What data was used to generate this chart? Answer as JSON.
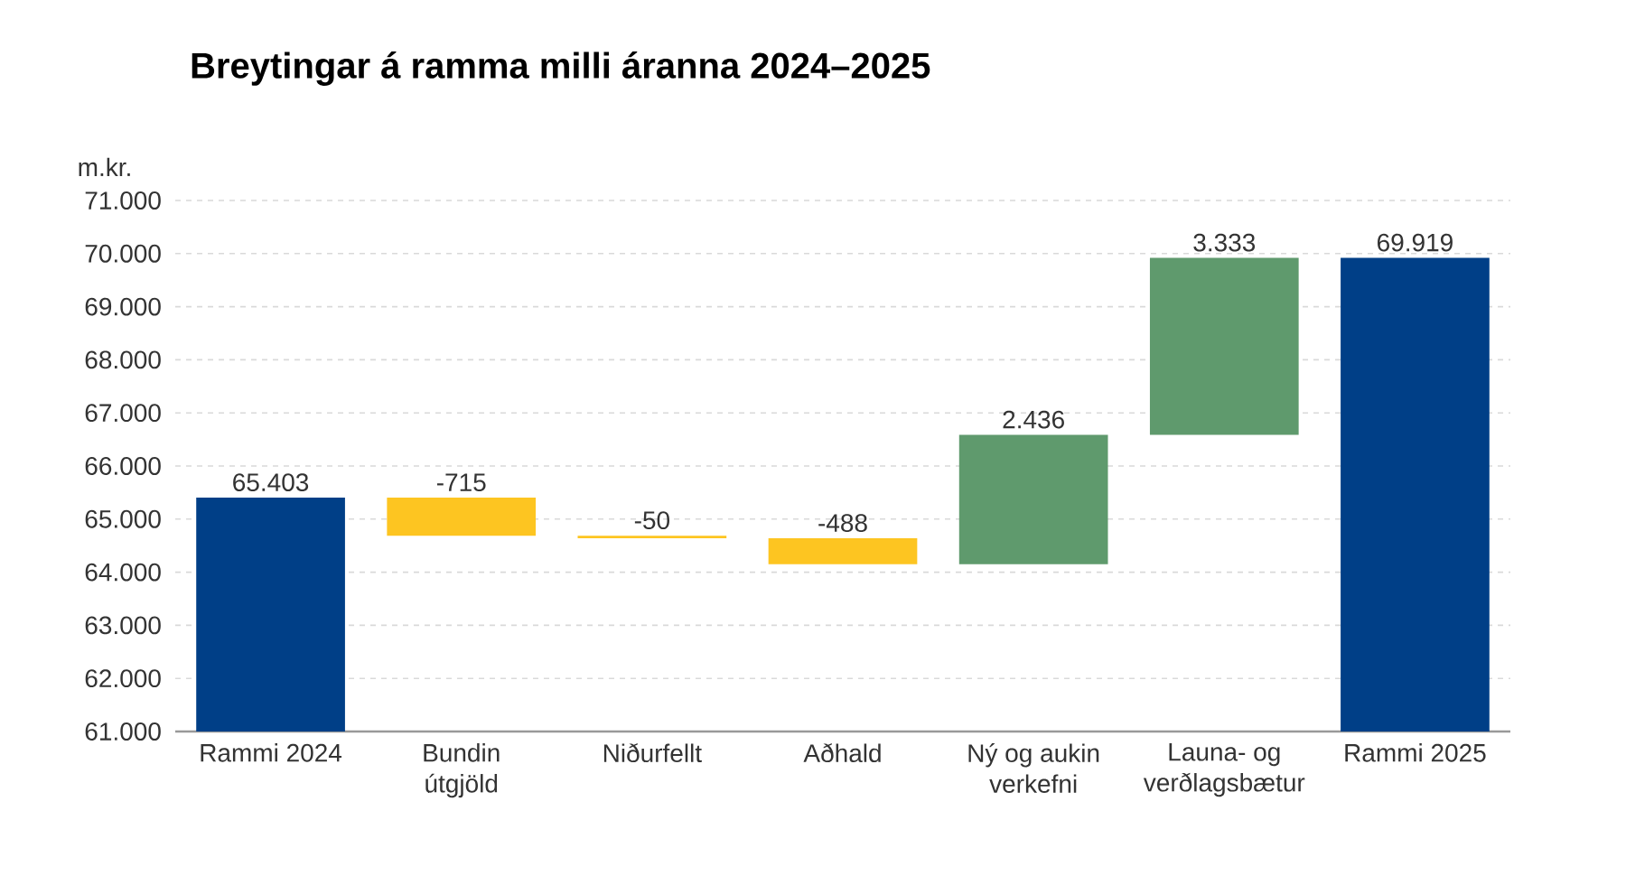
{
  "chart_data": {
    "type": "bar",
    "title": "Breytingar á ramma milli áranna 2024–2025",
    "ylabel": "m.kr.",
    "categories": [
      "Rammi 2024",
      "Bundin útgjöld",
      "Niðurfellt",
      "Aðhald",
      "Ný og aukin verkefni",
      "Launa- og verðlagsbætur",
      "Rammi 2025"
    ],
    "values": [
      65403,
      -715,
      -50,
      -488,
      2436,
      3333,
      69919
    ],
    "base": [
      null,
      65403,
      64688,
      64638,
      64150,
      66586,
      null
    ],
    "colors": [
      "#003f87",
      "#fdc521",
      "#fdc521",
      "#fdc521",
      "#5f9a6d",
      "#5f9a6d",
      "#003f87"
    ],
    "value_labels": [
      "65.403",
      "-715",
      "-50",
      "-488",
      "2.436",
      "3.333",
      "69.919"
    ],
    "ylim": [
      61000,
      71000
    ],
    "yticks": [
      {
        "value": 61000,
        "label": "61.000"
      },
      {
        "value": 62000,
        "label": "62.000"
      },
      {
        "value": 63000,
        "label": "63.000"
      },
      {
        "value": 64000,
        "label": "64.000"
      },
      {
        "value": 65000,
        "label": "65.000"
      },
      {
        "value": 66000,
        "label": "66.000"
      },
      {
        "value": 67000,
        "label": "67.000"
      },
      {
        "value": 68000,
        "label": "68.000"
      },
      {
        "value": 69000,
        "label": "69.000"
      },
      {
        "value": 70000,
        "label": "70.000"
      },
      {
        "value": 71000,
        "label": "71.000"
      }
    ],
    "grid": "y"
  }
}
